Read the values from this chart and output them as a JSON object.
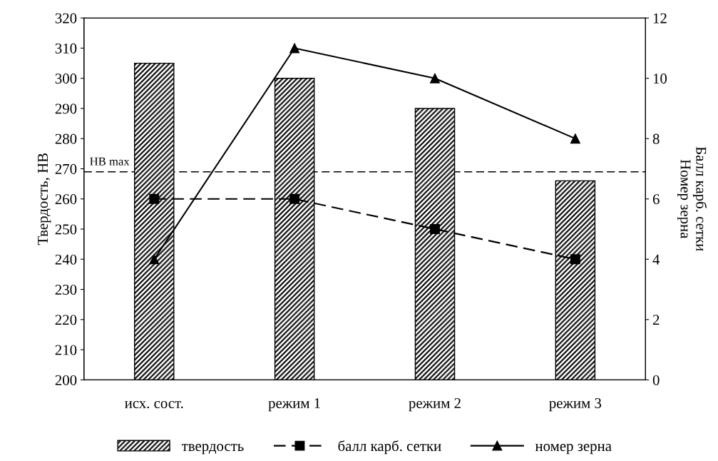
{
  "chart_data": {
    "type": "bar",
    "categories": [
      "исх. сост.",
      "режим 1",
      "режим 2",
      "режим 3"
    ],
    "series": [
      {
        "name": "твердость",
        "color": "#000000",
        "values": [
          305,
          300,
          290,
          266
        ]
      },
      {
        "name": "балл карб. сетки",
        "type": "line",
        "axis": "y2",
        "color": "#000000",
        "line_style": "dashed",
        "marker": "square",
        "values": [
          6,
          6,
          5,
          4
        ]
      },
      {
        "name": "номер зерна",
        "type": "line",
        "axis": "y2",
        "color": "#000000",
        "line_style": "solid",
        "marker": "triangle",
        "values": [
          4,
          11,
          10,
          8
        ]
      }
    ],
    "ylabel": "Твердость, НВ",
    "y2label": "Балл карб. сетки\nНомер зерна",
    "ylim": [
      200,
      320
    ],
    "yticks": [
      200,
      210,
      220,
      230,
      240,
      250,
      260,
      270,
      280,
      290,
      300,
      310,
      320
    ],
    "y2lim": [
      0,
      12
    ],
    "y2ticks": [
      0,
      2,
      4,
      6,
      8,
      10,
      12
    ],
    "ref_lines": [
      {
        "axis": "y",
        "value": 269,
        "label": "HB max",
        "color": "#000000",
        "line_style": "dashed"
      }
    ],
    "grid": false,
    "legend": "bottom"
  }
}
